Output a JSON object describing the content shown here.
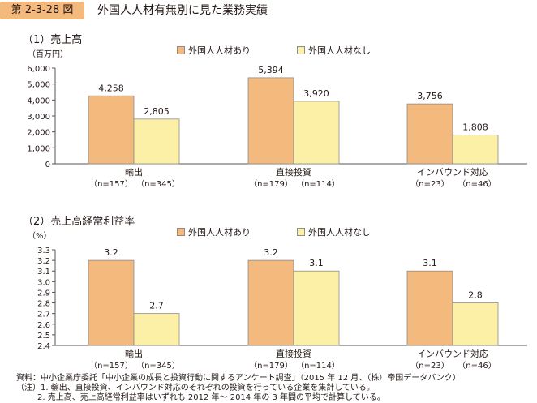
{
  "figure": {
    "number": "第 2-3-28 図",
    "title": "外国人人材有無別に見た業務実績"
  },
  "colors": {
    "with": "#f4b97d",
    "without": "#fcf0a6",
    "axis": "#555555",
    "bar_border": "#8c8c8c"
  },
  "chart_data": [
    {
      "type": "bar",
      "title": "（1）売上高",
      "unit": "（百万円）",
      "ylim": [
        0,
        6000
      ],
      "yticks": [
        "0",
        "1,000",
        "2,000",
        "3,000",
        "4,000",
        "5,000",
        "6,000"
      ],
      "ytick_values": [
        0,
        1000,
        2000,
        3000,
        4000,
        5000,
        6000
      ],
      "grid": false,
      "legend_position": "top",
      "categories": [
        "輸出",
        "直接投資",
        "インバウンド対応"
      ],
      "sample_sizes": [
        [
          "（n=157）",
          "（n=345）"
        ],
        [
          "（n=179）",
          "（n=114）"
        ],
        [
          "（n=23）",
          "（n=46）"
        ]
      ],
      "series": [
        {
          "name": "外国人人材あり",
          "values": [
            4258,
            5394,
            3756
          ],
          "labels": [
            "4,258",
            "5,394",
            "3,756"
          ]
        },
        {
          "name": "外国人人材なし",
          "values": [
            2805,
            3920,
            1808
          ],
          "labels": [
            "2,805",
            "3,920",
            "1,808"
          ]
        }
      ]
    },
    {
      "type": "bar",
      "title": "（2）売上高経常利益率",
      "unit": "（%）",
      "ylim": [
        2.4,
        3.3
      ],
      "yticks": [
        "2.4",
        "2.5",
        "2.6",
        "2.7",
        "2.8",
        "2.9",
        "3.0",
        "3.1",
        "3.2",
        "3.3"
      ],
      "ytick_values": [
        2.4,
        2.5,
        2.6,
        2.7,
        2.8,
        2.9,
        3.0,
        3.1,
        3.2,
        3.3
      ],
      "grid": false,
      "legend_position": "top",
      "categories": [
        "輸出",
        "直接投資",
        "インバウンド対応"
      ],
      "sample_sizes": [
        [
          "（n=157）",
          "（n=345）"
        ],
        [
          "（n=179）",
          "（n=114）"
        ],
        [
          "（n=23）",
          "（n=46）"
        ]
      ],
      "series": [
        {
          "name": "外国人人材あり",
          "values": [
            3.2,
            3.2,
            3.1
          ],
          "labels": [
            "3.2",
            "3.2",
            "3.1"
          ]
        },
        {
          "name": "外国人人材なし",
          "values": [
            2.7,
            3.1,
            2.8
          ],
          "labels": [
            "2.7",
            "3.1",
            "2.8"
          ]
        }
      ]
    }
  ],
  "notes": {
    "source": "資料：中小企業庁委託「中小企業の成長と投資行動に関するアンケート調査」（2015 年 12 月、（株）帝国データバンク）",
    "note1": "（注）1. 輸出、直接投資、インバウンド対応のそれぞれの投資を行っている企業を集計している。",
    "note2": "2. 売上高、売上高経常利益率はいずれも 2012 年～ 2014 年の 3 年間の平均で計算している。"
  }
}
